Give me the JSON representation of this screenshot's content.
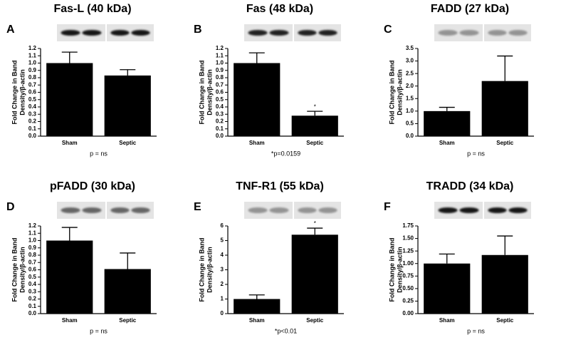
{
  "chart_data": [
    {
      "type": "bar",
      "title": "Fas-L (40 kDa)",
      "panel": "A",
      "ylabel": [
        "Fold Change in Band",
        "Density/β-actin"
      ],
      "categories": [
        "Sham",
        "Septic"
      ],
      "values": [
        1.0,
        0.83
      ],
      "errors": [
        0.15,
        0.08
      ],
      "color": "#000000",
      "ylim": [
        0,
        1.2
      ],
      "yticks": [
        {
          "value": 0,
          "label": "0.0"
        },
        0.1,
        0.2,
        0.3,
        0.4,
        0.5,
        0.6,
        0.7,
        0.8,
        0.9,
        {
          "value": 1,
          "label": "1.0"
        },
        1.1,
        1.2
      ],
      "note": "p = ns"
    },
    {
      "type": "bar",
      "title": "Fas (48 kDa)",
      "panel": "B",
      "ylabel": [
        "Fold Change in Band",
        "Density/β-actin"
      ],
      "categories": [
        "Sham",
        "Septic"
      ],
      "values": [
        1.0,
        0.28
      ],
      "errors": [
        0.14,
        0.06
      ],
      "color": "#000000",
      "ylim": [
        0,
        1.2
      ],
      "yticks": [
        {
          "value": 0,
          "label": "0.0"
        },
        0.1,
        0.2,
        0.3,
        0.4,
        0.5,
        0.6,
        0.7,
        0.8,
        0.9,
        {
          "value": 1,
          "label": "1.0"
        },
        1.1,
        1.2
      ],
      "annotations": [
        {
          "text": "*",
          "x": "Septic"
        }
      ],
      "note": "*p=0.0159"
    },
    {
      "type": "bar",
      "title": "FADD (27 kDa)",
      "panel": "C",
      "ylabel": [
        "Fold Change in Band",
        "Density/β-actin"
      ],
      "categories": [
        "Sham",
        "Septic"
      ],
      "values": [
        1.0,
        2.2
      ],
      "errors": [
        0.15,
        1.0
      ],
      "color": "#000000",
      "ylim": [
        0,
        3.5
      ],
      "yticks": [
        {
          "value": 0,
          "label": "0.0"
        },
        0.5,
        {
          "value": 1,
          "label": "1.0"
        },
        1.5,
        {
          "value": 2,
          "label": "2.0"
        },
        2.5,
        {
          "value": 3,
          "label": "3.0"
        },
        3.5
      ],
      "note": "p = ns"
    },
    {
      "type": "bar",
      "title": "pFADD (30 kDa)",
      "panel": "D",
      "ylabel": [
        "Fold Change in Band",
        "Density/β-actin"
      ],
      "categories": [
        "Sham",
        "Septic"
      ],
      "values": [
        1.0,
        0.61
      ],
      "errors": [
        0.18,
        0.22
      ],
      "color": "#000000",
      "ylim": [
        0,
        1.2
      ],
      "yticks": [
        {
          "value": 0,
          "label": "0.0"
        },
        0.1,
        0.2,
        0.3,
        0.4,
        0.5,
        0.6,
        0.7,
        0.8,
        0.9,
        {
          "value": 1,
          "label": "1.0"
        },
        1.1,
        1.2
      ],
      "note": "p = ns"
    },
    {
      "type": "bar",
      "title": "TNF-R1 (55 kDa)",
      "panel": "E",
      "ylabel": [
        "Fold Change in Band",
        "Density/β-actin"
      ],
      "categories": [
        "Sham",
        "Septic"
      ],
      "values": [
        1.0,
        5.4
      ],
      "errors": [
        0.28,
        0.45
      ],
      "color": "#000000",
      "ylim": [
        0,
        6
      ],
      "yticks": [
        0,
        1,
        2,
        3,
        4,
        5,
        6
      ],
      "annotations": [
        {
          "text": "*",
          "x": "Septic"
        }
      ],
      "note": "*p<0.01"
    },
    {
      "type": "bar",
      "title": "TRADD (34 kDa)",
      "panel": "F",
      "ylabel": [
        "Fold Change in Band",
        "Density/β-actin"
      ],
      "categories": [
        "Sham",
        "Septic"
      ],
      "values": [
        1.0,
        1.17
      ],
      "errors": [
        0.19,
        0.38
      ],
      "color": "#000000",
      "ylim": [
        0,
        1.75
      ],
      "yticks": [
        {
          "value": 0,
          "label": "0.00"
        },
        0.25,
        {
          "value": 0.5,
          "label": "0.50"
        },
        0.75,
        {
          "value": 1,
          "label": "1.00"
        },
        1.25,
        {
          "value": 1.5,
          "label": "1.50"
        },
        1.75
      ],
      "note": "p = ns"
    }
  ]
}
